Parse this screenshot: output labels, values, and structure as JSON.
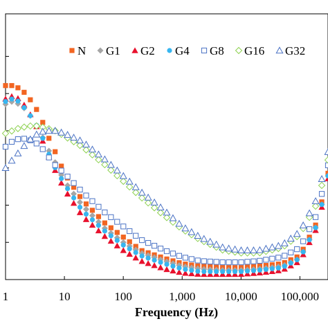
{
  "chart_data": {
    "type": "scatter",
    "title": "",
    "xlabel": "Frequency (Hz)",
    "ylabel": "",
    "x_scale": "log",
    "xlim": [
      1,
      300000
    ],
    "ylim": [
      0,
      1
    ],
    "x_ticks": [
      1,
      10,
      100,
      1000,
      10000,
      100000
    ],
    "x_tick_labels": [
      "1",
      "10",
      "100",
      "1,000",
      "10,000",
      "100,000"
    ],
    "y_ticks": [
      0.14,
      0.28,
      0.42,
      0.56,
      0.7,
      0.84
    ],
    "y_tick_labels_visible": false,
    "legend": "top-right",
    "grid": false,
    "series": [
      {
        "name": "N",
        "color": "#f26522",
        "marker": "square-filled",
        "x": [
          1,
          1.3,
          1.7,
          2.2,
          3,
          4,
          5,
          7,
          10,
          20,
          50,
          100,
          200,
          500,
          1000,
          2000,
          5000,
          10000,
          20000,
          50000,
          100000,
          200000,
          300000
        ],
        "y": [
          0.73,
          0.73,
          0.72,
          0.7,
          0.66,
          0.61,
          0.55,
          0.48,
          0.4,
          0.3,
          0.21,
          0.16,
          0.11,
          0.08,
          0.06,
          0.05,
          0.045,
          0.045,
          0.05,
          0.06,
          0.09,
          0.22,
          0.4
        ]
      },
      {
        "name": "G1",
        "color": "#a6a6a6",
        "marker": "diamond-filled",
        "x": [
          1,
          1.3,
          1.7,
          2.2,
          3,
          4,
          5,
          7,
          10,
          20,
          50,
          100,
          200,
          500,
          1000,
          2000,
          5000,
          10000,
          20000,
          50000,
          100000,
          200000,
          300000
        ],
        "y": [
          0.66,
          0.67,
          0.66,
          0.64,
          0.6,
          0.55,
          0.5,
          0.44,
          0.37,
          0.28,
          0.19,
          0.14,
          0.1,
          0.07,
          0.05,
          0.04,
          0.035,
          0.035,
          0.04,
          0.05,
          0.08,
          0.21,
          0.39
        ]
      },
      {
        "name": "G2",
        "color": "#e8112d",
        "marker": "triangle-filled",
        "x": [
          1,
          1.3,
          1.7,
          2.2,
          3,
          4,
          5,
          7,
          10,
          20,
          50,
          100,
          200,
          500,
          1000,
          2000,
          5000,
          10000,
          20000,
          50000,
          100000,
          200000,
          300000
        ],
        "y": [
          0.68,
          0.69,
          0.68,
          0.65,
          0.6,
          0.54,
          0.48,
          0.41,
          0.34,
          0.24,
          0.16,
          0.11,
          0.07,
          0.04,
          0.025,
          0.02,
          0.02,
          0.02,
          0.025,
          0.035,
          0.07,
          0.2,
          0.38
        ]
      },
      {
        "name": "G4",
        "color": "#37b6f0",
        "marker": "circle-filled",
        "x": [
          1,
          1.3,
          1.7,
          2.2,
          3,
          4,
          5,
          7,
          10,
          20,
          50,
          100,
          200,
          500,
          1000,
          2000,
          5000,
          10000,
          20000,
          50000,
          100000,
          200000,
          300000
        ],
        "y": [
          0.67,
          0.68,
          0.67,
          0.64,
          0.6,
          0.55,
          0.49,
          0.42,
          0.36,
          0.26,
          0.18,
          0.13,
          0.09,
          0.06,
          0.04,
          0.03,
          0.03,
          0.03,
          0.035,
          0.045,
          0.08,
          0.21,
          0.39
        ]
      },
      {
        "name": "G8",
        "color": "#4a72c4",
        "marker": "square-open",
        "x": [
          1,
          1.3,
          1.7,
          2.2,
          3,
          4,
          5,
          7,
          10,
          20,
          50,
          100,
          200,
          500,
          1000,
          2000,
          5000,
          10000,
          20000,
          50000,
          100000,
          200000,
          300000
        ],
        "y": [
          0.5,
          0.52,
          0.53,
          0.53,
          0.52,
          0.5,
          0.47,
          0.43,
          0.4,
          0.33,
          0.25,
          0.2,
          0.15,
          0.11,
          0.085,
          0.07,
          0.065,
          0.065,
          0.07,
          0.085,
          0.12,
          0.25,
          0.43
        ]
      },
      {
        "name": "G16",
        "color": "#8dd14f",
        "marker": "diamond-open",
        "x": [
          1,
          1.3,
          1.7,
          2.2,
          3,
          4,
          5,
          7,
          10,
          20,
          50,
          100,
          200,
          500,
          1000,
          2000,
          5000,
          10000,
          20000,
          50000,
          100000,
          200000,
          300000
        ],
        "y": [
          0.55,
          0.56,
          0.57,
          0.575,
          0.58,
          0.575,
          0.57,
          0.56,
          0.54,
          0.5,
          0.43,
          0.37,
          0.31,
          0.24,
          0.19,
          0.15,
          0.11,
          0.1,
          0.1,
          0.12,
          0.17,
          0.29,
          0.45
        ]
      },
      {
        "name": "G32",
        "color": "#4a72c4",
        "marker": "triangle-open",
        "x": [
          1,
          1.3,
          1.7,
          2.2,
          3,
          4,
          5,
          7,
          10,
          20,
          50,
          100,
          200,
          500,
          1000,
          2000,
          5000,
          10000,
          20000,
          50000,
          100000,
          200000,
          300000
        ],
        "y": [
          0.42,
          0.45,
          0.48,
          0.51,
          0.54,
          0.555,
          0.56,
          0.56,
          0.55,
          0.52,
          0.45,
          0.39,
          0.33,
          0.26,
          0.2,
          0.16,
          0.12,
          0.11,
          0.11,
          0.13,
          0.18,
          0.31,
          0.48
        ]
      }
    ]
  }
}
